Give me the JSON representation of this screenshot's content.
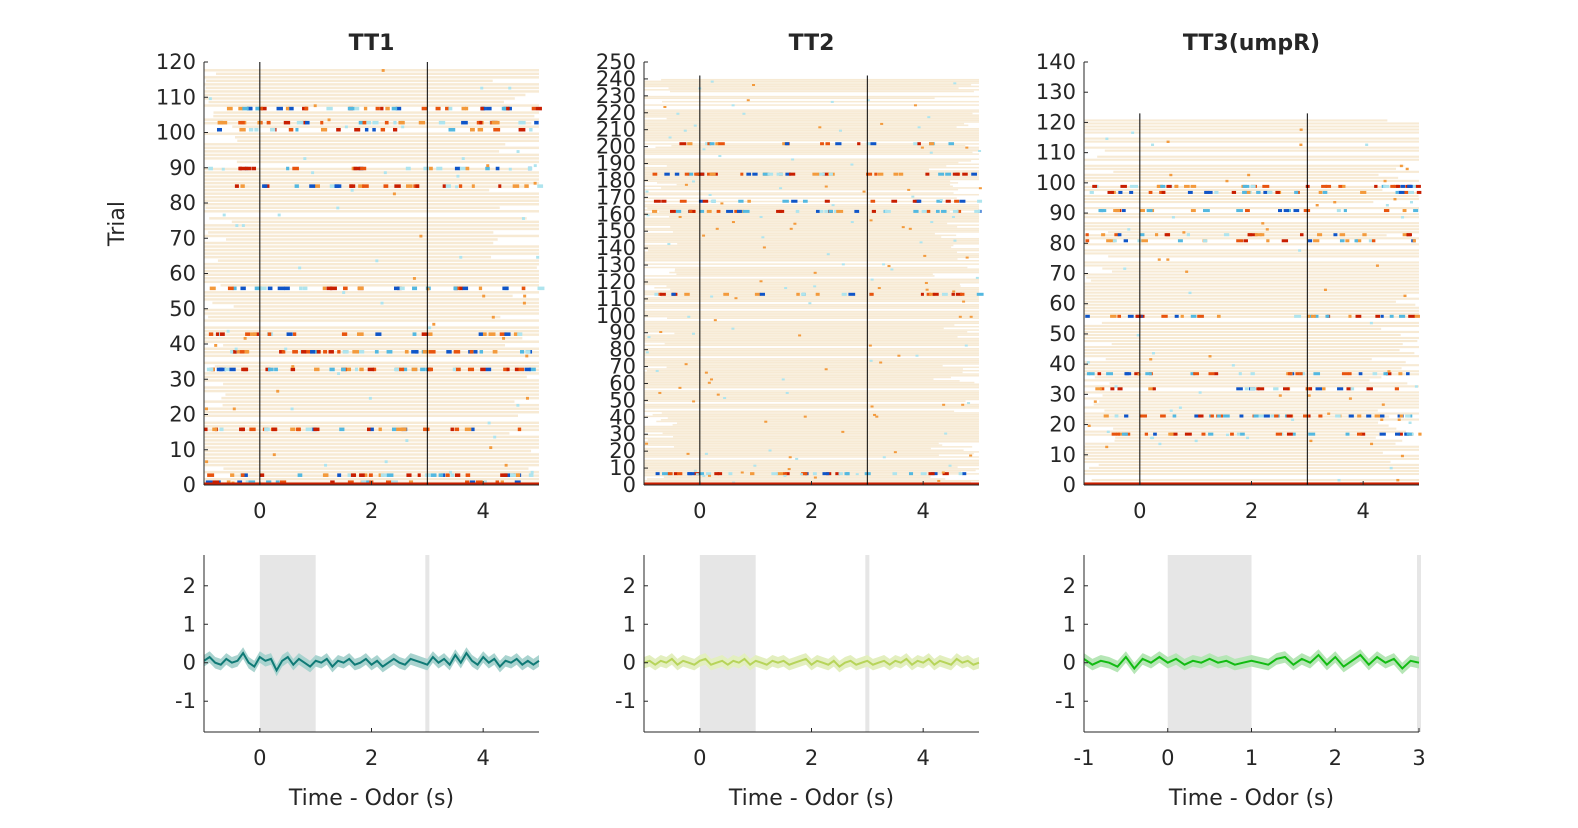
{
  "figure": {
    "colors": {
      "background": "#ffffff",
      "raster_base": "#f7ead4",
      "raster_hot": [
        "#c81e00",
        "#e8540e",
        "#f39a3c"
      ],
      "raster_cold": [
        "#0f55c8",
        "#53b8e0",
        "#aee4ee"
      ],
      "marker_line": "#000000",
      "axis": "#262626",
      "odor_window": "#e6e6e6"
    }
  },
  "chart_data": [
    {
      "type": "heatmap",
      "title": "TT1",
      "ylabel": "Trial",
      "xlabel": "Time - Odor (s)",
      "xlim": [
        -1,
        5
      ],
      "xticks": [
        "0",
        "2",
        "4"
      ],
      "ylim": [
        0,
        120
      ],
      "yticks": [
        "0",
        "10",
        "20",
        "30",
        "40",
        "50",
        "60",
        "70",
        "80",
        "90",
        "100",
        "110",
        "120"
      ],
      "n_trials": 118,
      "event_lines_s": [
        0,
        3
      ],
      "active_trials": [
        1,
        3,
        16,
        33,
        38,
        43,
        56,
        85,
        90,
        101,
        103,
        107
      ]
    },
    {
      "type": "heatmap",
      "title": "TT2",
      "ylabel": "",
      "xlabel": "",
      "xlim": [
        -1,
        5
      ],
      "xticks": [
        "0",
        "2",
        "4"
      ],
      "ylim": [
        0,
        250
      ],
      "yticks": [
        "0",
        "10",
        "20",
        "30",
        "40",
        "50",
        "60",
        "70",
        "80",
        "90",
        "100",
        "110",
        "120",
        "130",
        "140",
        "150",
        "160",
        "170",
        "180",
        "190",
        "200",
        "210",
        "220",
        "230",
        "240",
        "250"
      ],
      "n_trials": 240,
      "event_lines_s": [
        0,
        3
      ],
      "active_trials": [
        7,
        113,
        162,
        168,
        184,
        202
      ]
    },
    {
      "type": "heatmap",
      "title": "TT3(umpR)",
      "ylabel": "",
      "xlabel": "",
      "xlim": [
        -1,
        5
      ],
      "xticks": [
        "0",
        "2",
        "4"
      ],
      "ylim": [
        0,
        140
      ],
      "yticks": [
        "0",
        "10",
        "20",
        "30",
        "40",
        "50",
        "60",
        "70",
        "80",
        "90",
        "100",
        "110",
        "120",
        "130",
        "140"
      ],
      "n_trials": 121,
      "event_lines_s": [
        0,
        3
      ],
      "active_trials": [
        17,
        23,
        32,
        37,
        56,
        81,
        83,
        91,
        97,
        99
      ]
    },
    {
      "type": "line",
      "title": "",
      "ylabel": "",
      "xlabel": "Time - Odor (s)",
      "xlim": [
        -1,
        5
      ],
      "xticks": [
        "0",
        "2",
        "4"
      ],
      "ylim": [
        -1.8,
        2.8
      ],
      "yticks": [
        "-1",
        "0",
        "1",
        "2"
      ],
      "odor_window_s": [
        0,
        1
      ],
      "marker_s": 3,
      "line_color": "#0f7a76",
      "band_color": "#a9d3cf",
      "series": [
        {
          "x": [
            -1,
            -0.9,
            -0.8,
            -0.7,
            -0.6,
            -0.5,
            -0.4,
            -0.3,
            -0.2,
            -0.1,
            0,
            0.1,
            0.2,
            0.3,
            0.4,
            0.5,
            0.6,
            0.7,
            0.8,
            0.9,
            1,
            1.1,
            1.2,
            1.3,
            1.4,
            1.5,
            1.6,
            1.7,
            1.8,
            1.9,
            2,
            2.1,
            2.2,
            2.3,
            2.4,
            2.5,
            2.6,
            2.7,
            2.8,
            2.9,
            3,
            3.1,
            3.2,
            3.3,
            3.4,
            3.5,
            3.6,
            3.7,
            3.8,
            3.9,
            4,
            4.1,
            4.2,
            4.3,
            4.4,
            4.5,
            4.6,
            4.7,
            4.8,
            4.9,
            5
          ],
          "y": [
            0.05,
            0.15,
            0.0,
            -0.05,
            0.1,
            0.0,
            0.05,
            0.25,
            0.0,
            -0.1,
            0.15,
            0.05,
            0.1,
            -0.2,
            0.05,
            0.15,
            -0.05,
            0.1,
            0.0,
            -0.1,
            0.05,
            0.0,
            0.1,
            -0.1,
            0.05,
            0.0,
            0.1,
            -0.05,
            0.0,
            0.1,
            -0.05,
            0.05,
            -0.1,
            0.0,
            0.1,
            0.0,
            -0.05,
            0.1,
            0.05,
            0.0,
            -0.05,
            0.15,
            0.0,
            0.1,
            -0.05,
            0.2,
            0.0,
            0.25,
            0.05,
            -0.05,
            0.15,
            0.0,
            0.1,
            -0.1,
            0.05,
            0.0,
            0.1,
            -0.05,
            0.05,
            -0.05,
            0.05
          ]
        }
      ]
    },
    {
      "type": "line",
      "title": "",
      "ylabel": "",
      "xlabel": "Time - Odor (s)",
      "xlim": [
        -1,
        5
      ],
      "xticks": [
        "0",
        "2",
        "4"
      ],
      "ylim": [
        -1.8,
        2.8
      ],
      "yticks": [
        "-1",
        "0",
        "1",
        "2"
      ],
      "odor_window_s": [
        0,
        1
      ],
      "marker_s": 3,
      "line_color": "#b7d45a",
      "band_color": "#e3efbf",
      "series": [
        {
          "x": [
            -1,
            -0.9,
            -0.8,
            -0.7,
            -0.6,
            -0.5,
            -0.4,
            -0.3,
            -0.2,
            -0.1,
            0,
            0.1,
            0.2,
            0.3,
            0.4,
            0.5,
            0.6,
            0.7,
            0.8,
            0.9,
            1,
            1.1,
            1.2,
            1.3,
            1.4,
            1.5,
            1.6,
            1.7,
            1.8,
            1.9,
            2,
            2.1,
            2.2,
            2.3,
            2.4,
            2.5,
            2.6,
            2.7,
            2.8,
            2.9,
            3,
            3.1,
            3.2,
            3.3,
            3.4,
            3.5,
            3.6,
            3.7,
            3.8,
            3.9,
            4,
            4.1,
            4.2,
            4.3,
            4.4,
            4.5,
            4.6,
            4.7,
            4.8,
            4.9,
            5
          ],
          "y": [
            0.0,
            0.05,
            -0.05,
            0.05,
            0.0,
            0.1,
            -0.05,
            0.05,
            0.0,
            -0.05,
            0.05,
            0.1,
            -0.05,
            0.0,
            0.05,
            -0.05,
            0.05,
            0.0,
            0.1,
            -0.05,
            0.05,
            0.0,
            -0.05,
            0.05,
            0.0,
            0.05,
            -0.05,
            0.0,
            0.05,
            0.1,
            -0.05,
            0.05,
            0.0,
            -0.05,
            0.05,
            -0.1,
            0.0,
            0.05,
            -0.05,
            0.0,
            0.05,
            -0.05,
            0.0,
            0.05,
            -0.05,
            0.05,
            0.0,
            0.1,
            -0.05,
            0.05,
            0.0,
            0.1,
            -0.05,
            0.05,
            0.0,
            -0.05,
            0.1,
            0.0,
            0.05,
            -0.05,
            0.0
          ]
        }
      ]
    },
    {
      "type": "line",
      "title": "",
      "ylabel": "",
      "xlabel": "Time - Odor (s)",
      "xlim": [
        -1,
        3
      ],
      "xticks": [
        "-1",
        "0",
        "1",
        "2",
        "3"
      ],
      "ylim": [
        -1.8,
        2.8
      ],
      "yticks": [
        "-1",
        "0",
        "1",
        "2"
      ],
      "odor_window_s": [
        0,
        1
      ],
      "marker_s": 3,
      "line_color": "#12bb12",
      "band_color": "#b6e6b6",
      "series": [
        {
          "x": [
            -1,
            -0.9,
            -0.8,
            -0.7,
            -0.6,
            -0.5,
            -0.4,
            -0.3,
            -0.2,
            -0.1,
            0,
            0.1,
            0.2,
            0.3,
            0.4,
            0.5,
            0.6,
            0.7,
            0.8,
            0.9,
            1,
            1.1,
            1.2,
            1.3,
            1.4,
            1.5,
            1.6,
            1.7,
            1.8,
            1.9,
            2,
            2.1,
            2.2,
            2.3,
            2.4,
            2.5,
            2.6,
            2.7,
            2.8,
            2.9,
            3
          ],
          "y": [
            0.1,
            -0.05,
            0.05,
            0.0,
            -0.1,
            0.15,
            -0.15,
            0.1,
            0.0,
            0.15,
            0.0,
            0.1,
            -0.05,
            0.05,
            0.0,
            0.1,
            0.0,
            0.05,
            -0.05,
            0.0,
            0.05,
            0.0,
            -0.05,
            0.1,
            0.15,
            -0.05,
            0.1,
            0.0,
            0.2,
            -0.05,
            0.15,
            -0.1,
            0.05,
            0.2,
            -0.05,
            0.15,
            0.0,
            0.1,
            -0.15,
            0.05,
            0.0
          ]
        }
      ]
    }
  ]
}
